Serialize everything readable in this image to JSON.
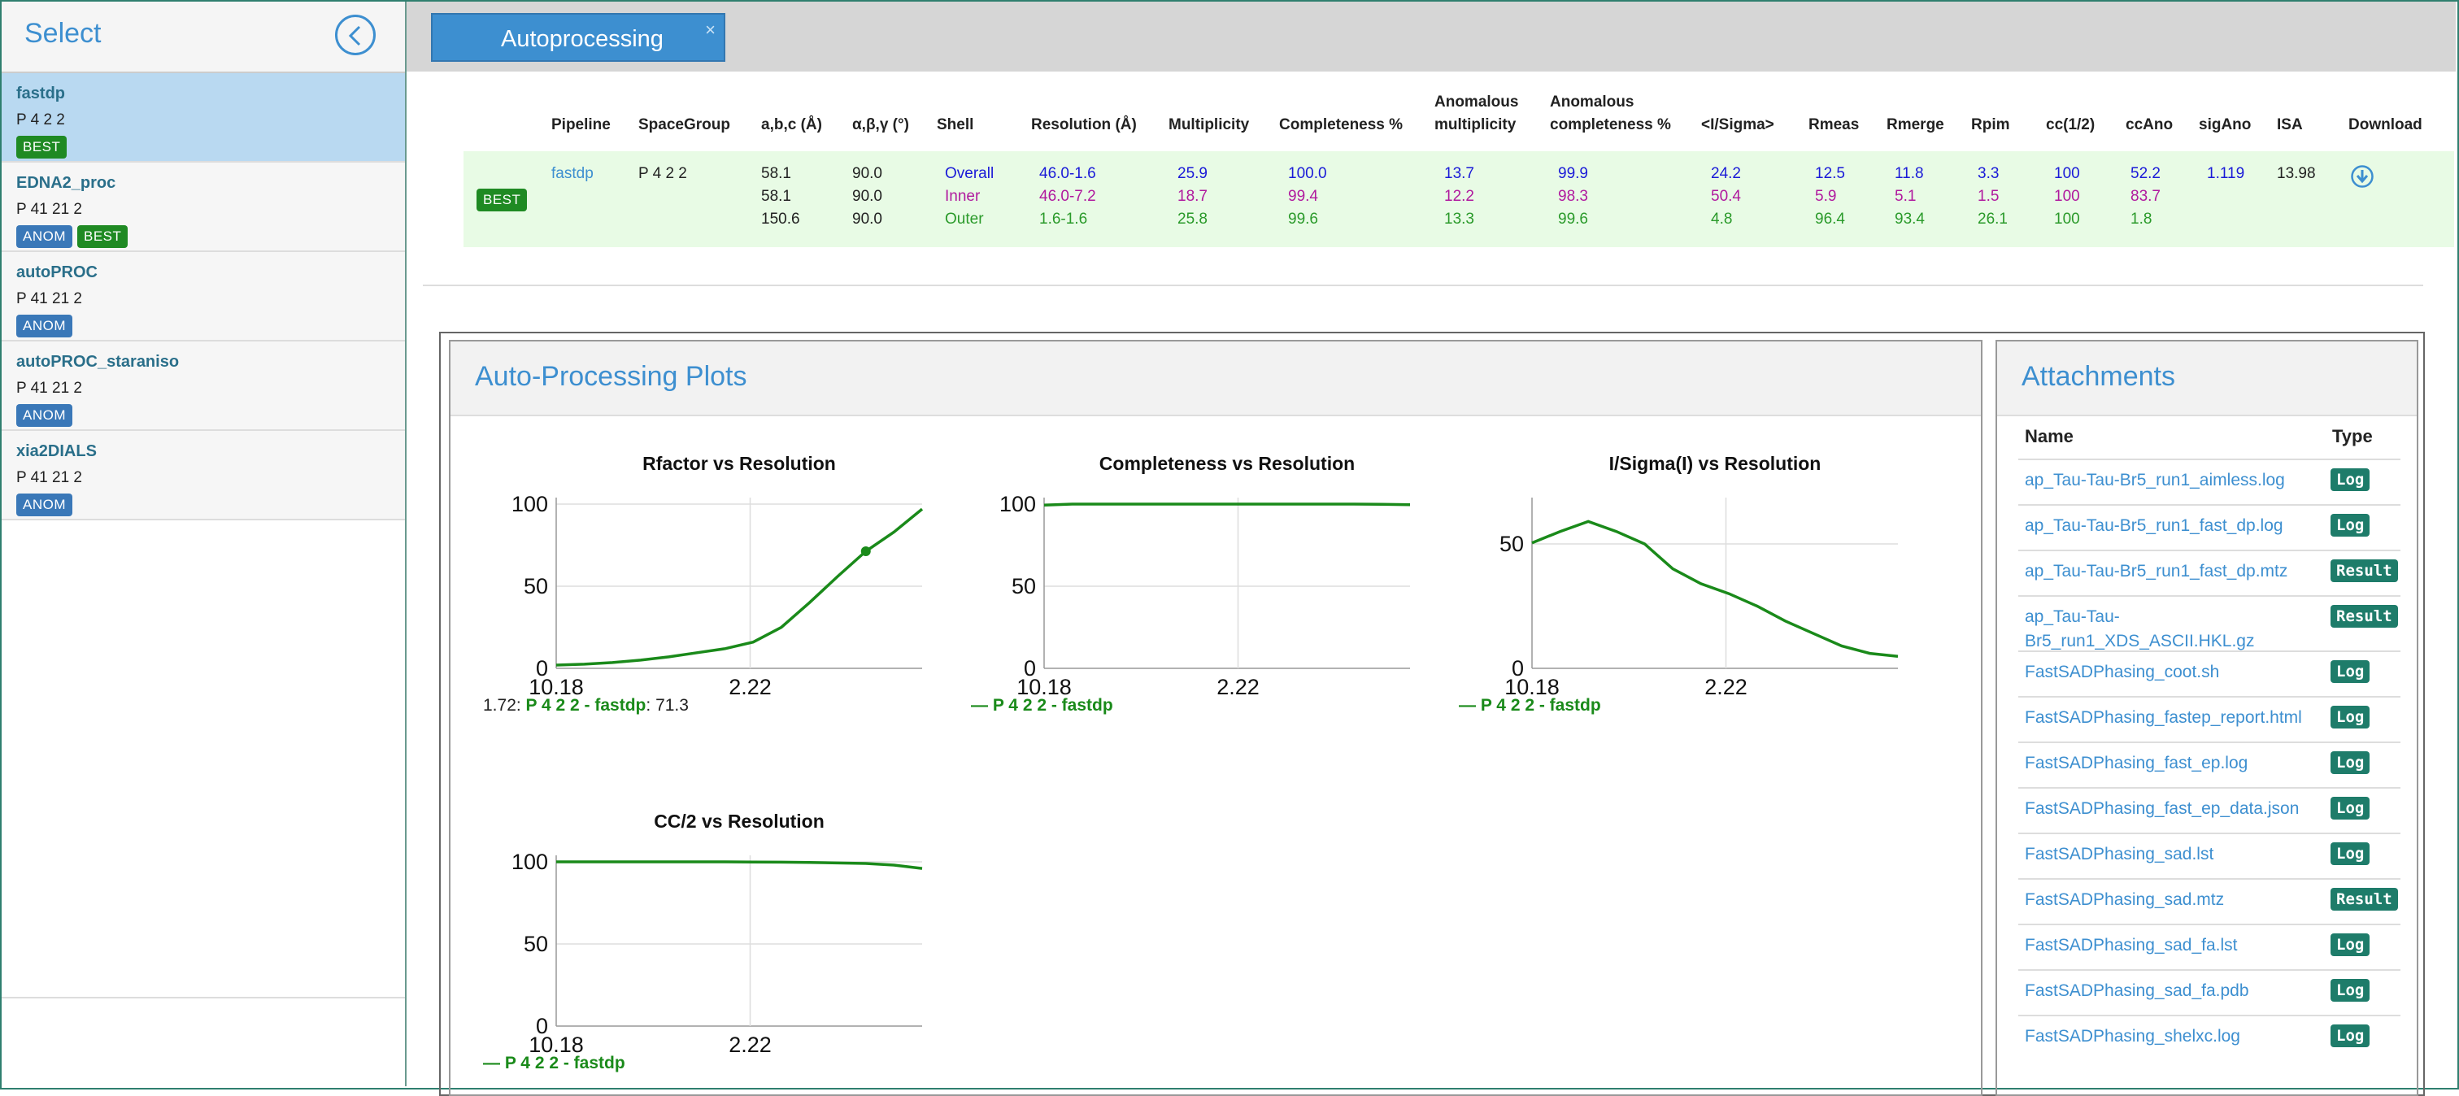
{
  "sidebar": {
    "title": "Select",
    "items": [
      {
        "name": "fastdp",
        "spacegroup": "P 4 2 2",
        "badges": [
          "BEST"
        ]
      },
      {
        "name": "EDNA2_proc",
        "spacegroup": "P 41 21 2",
        "badges": [
          "ANOM",
          "BEST"
        ]
      },
      {
        "name": "autoPROC",
        "spacegroup": "P 41 21 2",
        "badges": [
          "ANOM"
        ]
      },
      {
        "name": "autoPROC_staraniso",
        "spacegroup": "P 41 21 2",
        "badges": [
          "ANOM"
        ]
      },
      {
        "name": "xia2DIALS",
        "spacegroup": "P 41 21 2",
        "badges": [
          "ANOM"
        ]
      }
    ]
  },
  "tab": {
    "label": "Autoprocessing",
    "close": "×"
  },
  "table": {
    "headers": {
      "pipeline": "Pipeline",
      "spacegroup": "SpaceGroup",
      "abc": "a,b,c (Å)",
      "angles": "α,β,γ (°)",
      "shell": "Shell",
      "resolution": "Resolution (Å)",
      "multiplicity": "Multiplicity",
      "completeness": "Completeness %",
      "anom_mult_1": "Anomalous",
      "anom_mult_2": "multiplicity",
      "anom_comp_1": "Anomalous",
      "anom_comp_2": "completeness %",
      "isigma": "<I/Sigma>",
      "rmeas": "Rmeas",
      "rmerge": "Rmerge",
      "rpim": "Rpim",
      "cc12": "cc(1/2)",
      "ccano": "ccAno",
      "sigano": "sigAno",
      "isa": "ISA",
      "download": "Download"
    },
    "row": {
      "badge": "BEST",
      "pipeline": "fastdp",
      "spacegroup": "P 4 2 2",
      "abc": [
        "58.1",
        "58.1",
        "150.6"
      ],
      "angles": [
        "90.0",
        "90.0",
        "90.0"
      ],
      "shells": [
        {
          "shell": "Overall",
          "resolution": "46.0-1.6",
          "multiplicity": "25.9",
          "completeness": "100.0",
          "anom_mult": "13.7",
          "anom_comp": "99.9",
          "isigma": "24.2",
          "rmeas": "12.5",
          "rmerge": "11.8",
          "rpim": "3.3",
          "cc12": "100",
          "ccano": "52.2",
          "sigano": "1.119"
        },
        {
          "shell": "Inner",
          "resolution": "46.0-7.2",
          "multiplicity": "18.7",
          "completeness": "99.4",
          "anom_mult": "12.2",
          "anom_comp": "98.3",
          "isigma": "50.4",
          "rmeas": "5.9",
          "rmerge": "5.1",
          "rpim": "1.5",
          "cc12": "100",
          "ccano": "83.7",
          "sigano": ""
        },
        {
          "shell": "Outer",
          "resolution": "1.6-1.6",
          "multiplicity": "25.8",
          "completeness": "99.6",
          "anom_mult": "13.3",
          "anom_comp": "99.6",
          "isigma": "4.8",
          "rmeas": "96.4",
          "rmerge": "93.4",
          "rpim": "26.1",
          "cc12": "100",
          "ccano": "1.8",
          "sigano": ""
        }
      ],
      "isa": "13.98"
    }
  },
  "plots": {
    "title": "Auto-Processing Plots",
    "tooltip": {
      "x": "1.72",
      "series": "P 4 2 2 - fastdp",
      "value": "71.3"
    },
    "legend": "P 4 2 2 - fastdp"
  },
  "chart_data": [
    {
      "type": "line",
      "title": "Rfactor vs Resolution",
      "xlabel": "",
      "ylabel": "",
      "x_ticks": [
        "10.18",
        "2.22"
      ],
      "y_ticks": [
        0,
        50,
        100
      ],
      "ylim": [
        0,
        100
      ],
      "series": [
        {
          "name": "P 4 2 2 - fastdp",
          "values": [
            2,
            2.5,
            3.5,
            5,
            7,
            9.5,
            12,
            16,
            25,
            40,
            56,
            71.3,
            83,
            97
          ]
        }
      ],
      "color": "#1a8a1a"
    },
    {
      "type": "line",
      "title": "Completeness vs Resolution",
      "xlabel": "",
      "ylabel": "",
      "x_ticks": [
        "10.18",
        "2.22"
      ],
      "y_ticks": [
        0,
        50,
        100
      ],
      "ylim": [
        0,
        100
      ],
      "series": [
        {
          "name": "P 4 2 2 - fastdp",
          "values": [
            99.4,
            100,
            100,
            100,
            100,
            100,
            100,
            100,
            100,
            100,
            100,
            100,
            99.9,
            99.6
          ]
        }
      ],
      "color": "#1a8a1a"
    },
    {
      "type": "line",
      "title": "I/Sigma(I) vs Resolution",
      "xlabel": "",
      "ylabel": "",
      "x_ticks": [
        "10.18",
        "2.22"
      ],
      "y_ticks": [
        0,
        50
      ],
      "ylim": [
        0,
        66
      ],
      "series": [
        {
          "name": "P 4 2 2 - fastdp",
          "values": [
            50.4,
            55,
            59,
            55,
            50,
            40,
            34,
            30,
            25,
            19,
            14,
            9,
            6,
            4.8
          ]
        }
      ],
      "color": "#1a8a1a"
    },
    {
      "type": "line",
      "title": "CC/2 vs Resolution",
      "xlabel": "",
      "ylabel": "",
      "x_ticks": [
        "10.18",
        "2.22"
      ],
      "y_ticks": [
        0,
        50,
        100
      ],
      "ylim": [
        0,
        100
      ],
      "series": [
        {
          "name": "P 4 2 2 - fastdp",
          "values": [
            100,
            100,
            100,
            100,
            100,
            100,
            100,
            99.9,
            99.8,
            99.6,
            99.3,
            99,
            98,
            96
          ]
        }
      ],
      "color": "#1a8a1a"
    }
  ],
  "attachments": {
    "title": "Attachments",
    "col_name": "Name",
    "col_type": "Type",
    "items": [
      {
        "name": "ap_Tau-Tau-Br5_run1_aimless.log",
        "type": "Log"
      },
      {
        "name": "ap_Tau-Tau-Br5_run1_fast_dp.log",
        "type": "Log"
      },
      {
        "name": "ap_Tau-Tau-Br5_run1_fast_dp.mtz",
        "type": "Result"
      },
      {
        "name": "ap_Tau-Tau-",
        "name2": "Br5_run1_XDS_ASCII.HKL.gz",
        "type": "Result"
      },
      {
        "name": "FastSADPhasing_coot.sh",
        "type": "Log"
      },
      {
        "name": "FastSADPhasing_fastep_report.html",
        "type": "Log"
      },
      {
        "name": "FastSADPhasing_fast_ep.log",
        "type": "Log"
      },
      {
        "name": "FastSADPhasing_fast_ep_data.json",
        "type": "Log"
      },
      {
        "name": "FastSADPhasing_sad.lst",
        "type": "Log"
      },
      {
        "name": "FastSADPhasing_sad.mtz",
        "type": "Result"
      },
      {
        "name": "FastSADPhasing_sad_fa.lst",
        "type": "Log"
      },
      {
        "name": "FastSADPhasing_sad_fa.pdb",
        "type": "Log"
      },
      {
        "name": "FastSADPhasing_shelxc.log",
        "type": "Log"
      }
    ]
  }
}
